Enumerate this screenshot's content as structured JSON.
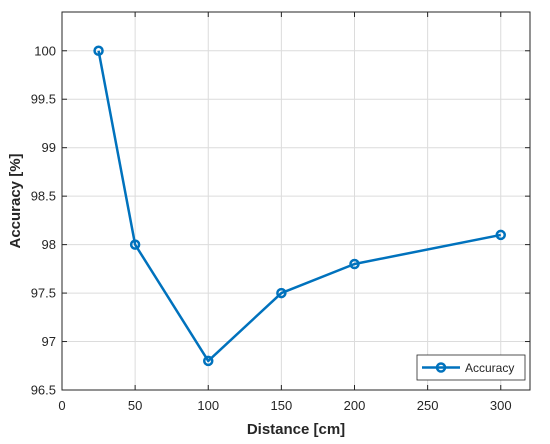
{
  "chart_data": {
    "type": "line",
    "title": "",
    "xlabel": "Distance [cm]",
    "ylabel": "Accuracy [%]",
    "xlim": [
      0,
      320
    ],
    "ylim": [
      96.5,
      100.4
    ],
    "xticks": [
      0,
      50,
      100,
      150,
      200,
      250,
      300
    ],
    "yticks": [
      96.5,
      97,
      97.5,
      98,
      98.5,
      99,
      99.5,
      100
    ],
    "grid": true,
    "legend_position": "bottom-right",
    "series": [
      {
        "name": "Accuracy",
        "color": "#0072BD",
        "marker": "circle",
        "x": [
          25,
          50,
          100,
          150,
          200,
          300
        ],
        "y": [
          100,
          98,
          96.8,
          97.5,
          97.8,
          98.1
        ]
      }
    ]
  }
}
